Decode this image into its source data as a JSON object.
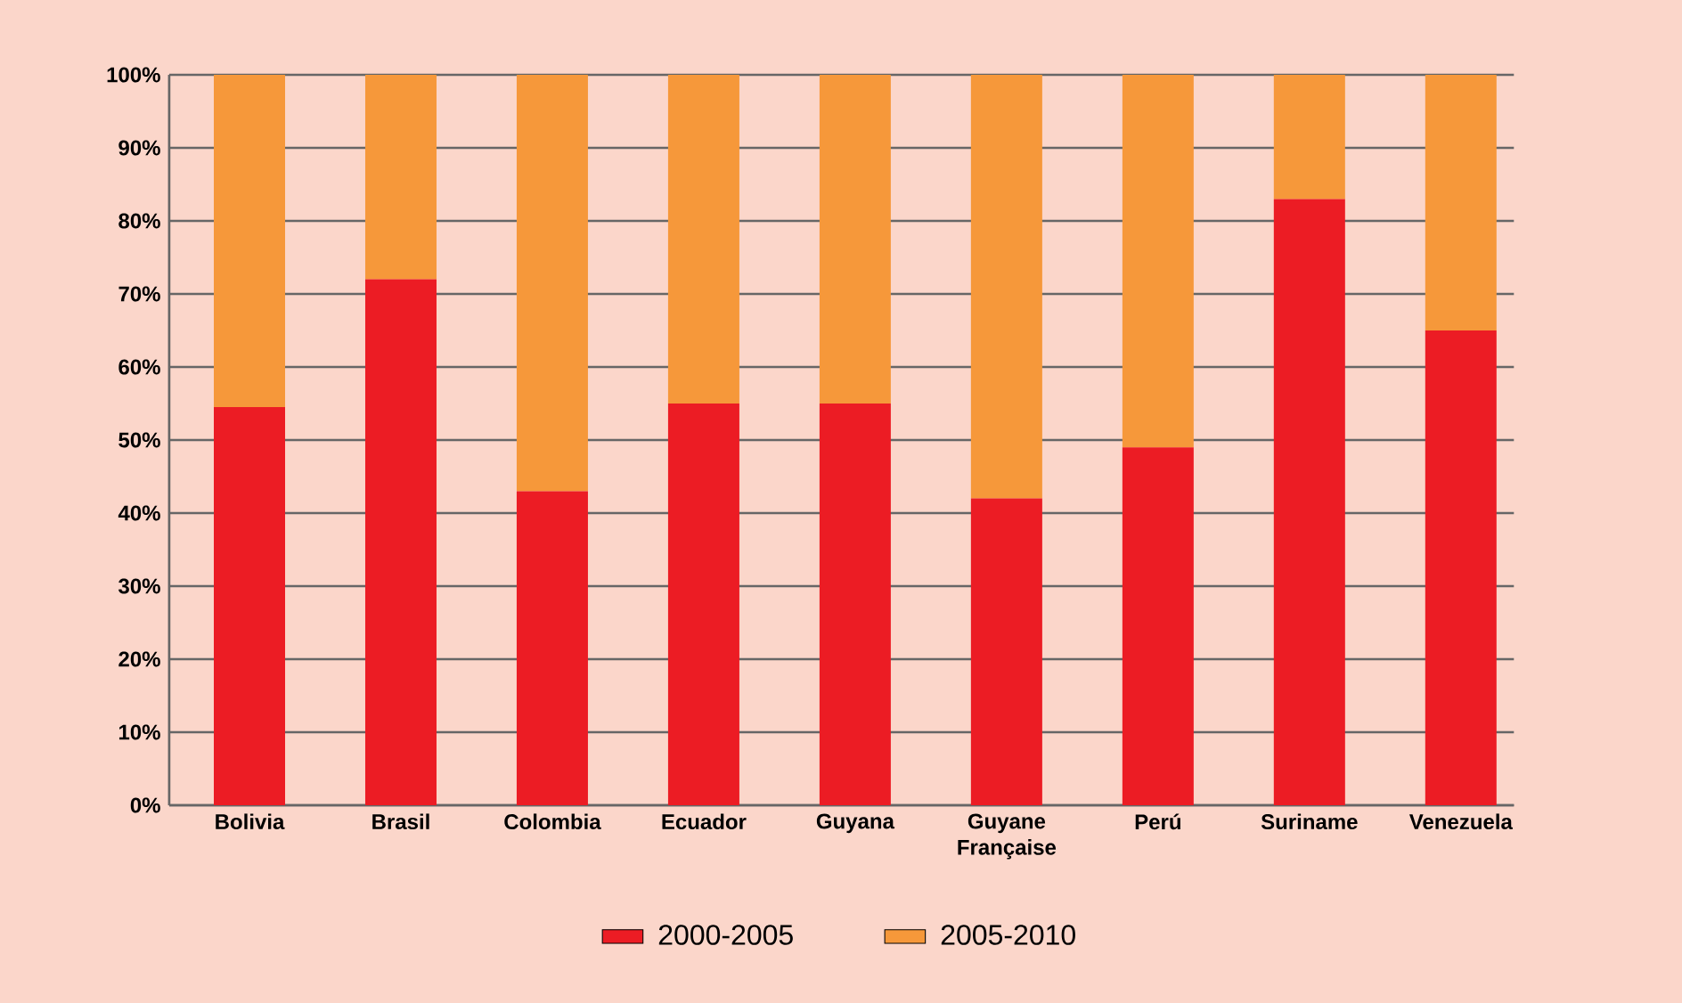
{
  "chart_data": {
    "type": "bar",
    "stacked": true,
    "categories": [
      "Bolivia",
      "Brasil",
      "Colombia",
      "Ecuador",
      "Guyana",
      "Guyane Française",
      "Perú",
      "Suriname",
      "Venezuela"
    ],
    "series": [
      {
        "name": "2000-2005",
        "color": "#ec1c24",
        "values": [
          54.5,
          72,
          43,
          55,
          55,
          42,
          49,
          83,
          65
        ]
      },
      {
        "name": "2005-2010",
        "color": "#f6983a",
        "values": [
          45.5,
          28,
          57,
          45,
          45,
          58,
          51,
          17,
          35
        ]
      }
    ],
    "ylim": [
      0,
      100
    ],
    "yticks": [
      {
        "value": 0,
        "label": "0%"
      },
      {
        "value": 10,
        "label": "10%"
      },
      {
        "value": 20,
        "label": "20%"
      },
      {
        "value": 30,
        "label": "30%"
      },
      {
        "value": 40,
        "label": "40%"
      },
      {
        "value": 50,
        "label": "50%"
      },
      {
        "value": 60,
        "label": "60%"
      },
      {
        "value": 70,
        "label": "70%"
      },
      {
        "value": 80,
        "label": "80%"
      },
      {
        "value": 90,
        "label": "90%"
      },
      {
        "value": 100,
        "label": "100%"
      }
    ],
    "grid": "y",
    "legend": "bottom"
  }
}
